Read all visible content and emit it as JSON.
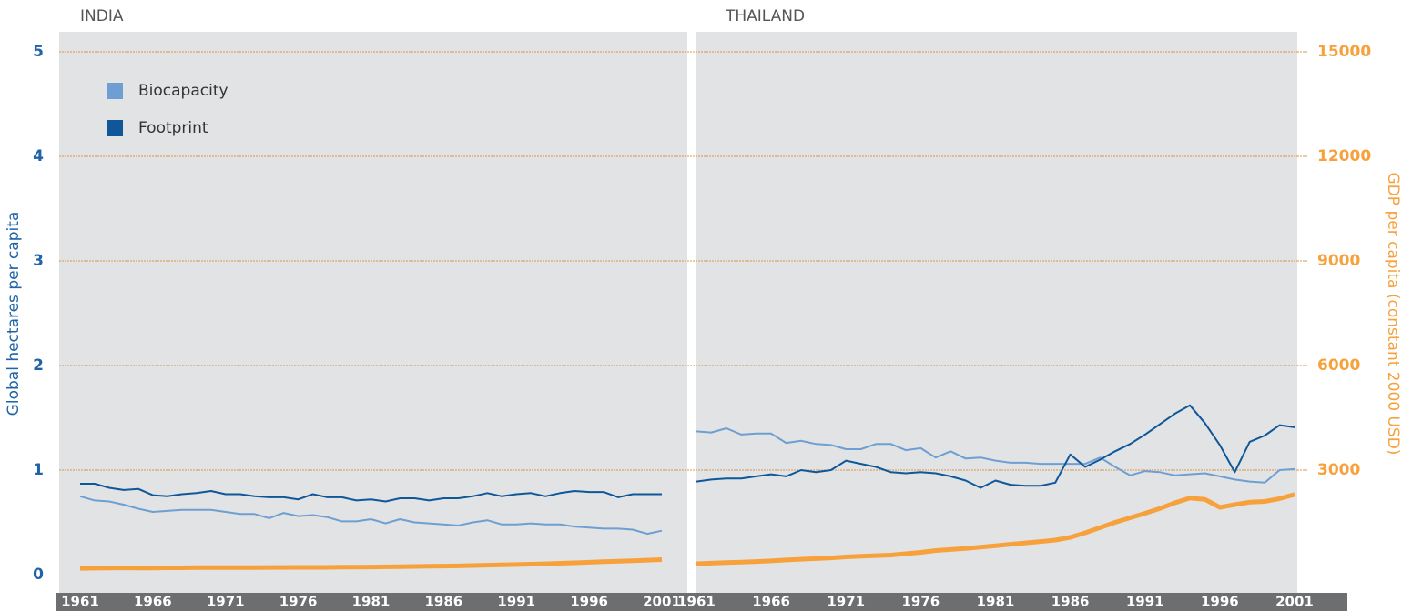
{
  "chart_data": [
    {
      "type": "line",
      "title": "INDIA",
      "ylabel": "Global hectares per capita",
      "categories": [
        "1961",
        null,
        null,
        null,
        null,
        "1966",
        null,
        null,
        null,
        null,
        "1971",
        null,
        null,
        null,
        null,
        "1976",
        null,
        null,
        null,
        null,
        "1981",
        null,
        null,
        null,
        null,
        "1986",
        null,
        null,
        null,
        null,
        "1991",
        null,
        null,
        null,
        null,
        "1996",
        null,
        null,
        null,
        null,
        "2001"
      ],
      "ylim": [
        0,
        5
      ],
      "yticks": [
        0,
        1,
        2,
        3,
        4,
        5
      ],
      "y2lim": [
        0,
        15000
      ],
      "grid": true,
      "legend": "upper left",
      "series": [
        {
          "name": "Biocapacity",
          "color": "#6d9fd3",
          "values": [
            0.75,
            0.71,
            0.7,
            0.67,
            0.63,
            0.6,
            0.61,
            0.62,
            0.62,
            0.62,
            0.6,
            0.58,
            0.58,
            0.54,
            0.59,
            0.56,
            0.57,
            0.55,
            0.51,
            0.51,
            0.53,
            0.49,
            0.53,
            0.5,
            0.49,
            0.48,
            0.47,
            0.5,
            0.52,
            0.48,
            0.48,
            0.49,
            0.48,
            0.48,
            0.46,
            0.45,
            0.44,
            0.44,
            0.43,
            0.39,
            0.42
          ]
        },
        {
          "name": "Footprint",
          "color": "#0f5799",
          "values": [
            0.87,
            0.87,
            0.83,
            0.81,
            0.82,
            0.76,
            0.75,
            0.77,
            0.78,
            0.8,
            0.77,
            0.77,
            0.75,
            0.74,
            0.74,
            0.72,
            0.77,
            0.74,
            0.74,
            0.71,
            0.72,
            0.7,
            0.73,
            0.73,
            0.71,
            0.73,
            0.73,
            0.75,
            0.78,
            0.75,
            0.77,
            0.78,
            0.75,
            0.78,
            0.8,
            0.79,
            0.79,
            0.74,
            0.77,
            0.77,
            0.77
          ]
        },
        {
          "color": "#f7a13c",
          "axis": "y2",
          "values": [
            180,
            185,
            190,
            195,
            190,
            190,
            195,
            195,
            200,
            200,
            200,
            200,
            200,
            205,
            205,
            210,
            210,
            210,
            215,
            215,
            220,
            225,
            230,
            235,
            240,
            245,
            250,
            260,
            270,
            280,
            290,
            300,
            310,
            325,
            340,
            355,
            370,
            385,
            400,
            415,
            430
          ]
        }
      ]
    },
    {
      "type": "line",
      "title": "THAILAND",
      "y2label": "GDP per capita (constant 2000 USD)",
      "categories": [
        "1961",
        null,
        null,
        null,
        null,
        "1966",
        null,
        null,
        null,
        null,
        "1971",
        null,
        null,
        null,
        null,
        "1976",
        null,
        null,
        null,
        null,
        "1981",
        null,
        null,
        null,
        null,
        "1986",
        null,
        null,
        null,
        null,
        "1991",
        null,
        null,
        null,
        null,
        "1996",
        null,
        null,
        null,
        null,
        "2001"
      ],
      "ylim": [
        0,
        5
      ],
      "y2lim": [
        0,
        15000
      ],
      "y2ticks": [
        3000,
        6000,
        9000,
        12000,
        15000
      ],
      "series": [
        {
          "name": "Biocapacity",
          "color": "#6d9fd3",
          "values": [
            1.37,
            1.36,
            1.4,
            1.34,
            1.35,
            1.35,
            1.26,
            1.28,
            1.25,
            1.24,
            1.2,
            1.2,
            1.25,
            1.25,
            1.19,
            1.21,
            1.12,
            1.18,
            1.11,
            1.12,
            1.09,
            1.07,
            1.07,
            1.06,
            1.06,
            1.06,
            1.06,
            1.12,
            1.03,
            0.95,
            0.99,
            0.98,
            0.95,
            0.96,
            0.97,
            0.94,
            0.91,
            0.89,
            0.88,
            1.0,
            1.01
          ]
        },
        {
          "name": "Footprint",
          "color": "#0f5799",
          "values": [
            0.89,
            0.91,
            0.92,
            0.92,
            0.94,
            0.96,
            0.94,
            1.0,
            0.98,
            1.0,
            1.09,
            1.06,
            1.03,
            0.98,
            0.97,
            0.98,
            0.97,
            0.94,
            0.9,
            0.83,
            0.9,
            0.86,
            0.85,
            0.85,
            0.88,
            1.15,
            1.03,
            1.1,
            1.18,
            1.25,
            1.34,
            1.44,
            1.54,
            1.62,
            1.45,
            1.24,
            0.98,
            1.27,
            1.33,
            1.43,
            1.41
          ]
        },
        {
          "color": "#f7a13c",
          "axis": "y2",
          "values": [
            313,
            330,
            345,
            360,
            375,
            395,
            420,
            440,
            460,
            480,
            510,
            530,
            545,
            560,
            600,
            640,
            690,
            720,
            750,
            790,
            830,
            870,
            910,
            950,
            990,
            1070,
            1200,
            1350,
            1500,
            1630,
            1760,
            1900,
            2060,
            2200,
            2160,
            1930,
            2010,
            2080,
            2100,
            2180,
            2300
          ]
        }
      ]
    }
  ]
}
